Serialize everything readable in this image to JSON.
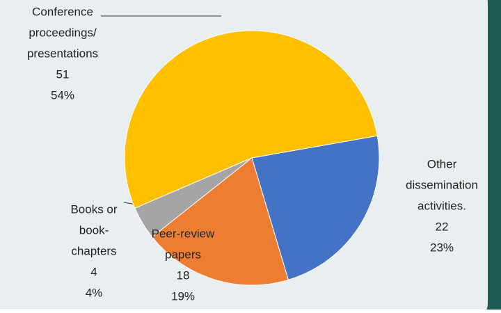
{
  "chart_data": {
    "type": "pie",
    "categories": [
      [
        "Other",
        "dissemination",
        "activities."
      ],
      [
        "Peer-review",
        "papers"
      ],
      [
        "Books or",
        "book-",
        "chapters"
      ],
      [
        "Conference",
        "proceedings/",
        "presentations"
      ]
    ],
    "values": [
      22,
      18,
      4,
      51
    ],
    "value_labels": [
      "23%",
      "19%",
      "4%",
      "54%"
    ],
    "colors": [
      "#4472c4",
      "#ed7d31",
      "#a5a5a5",
      "#ffc000"
    ]
  }
}
